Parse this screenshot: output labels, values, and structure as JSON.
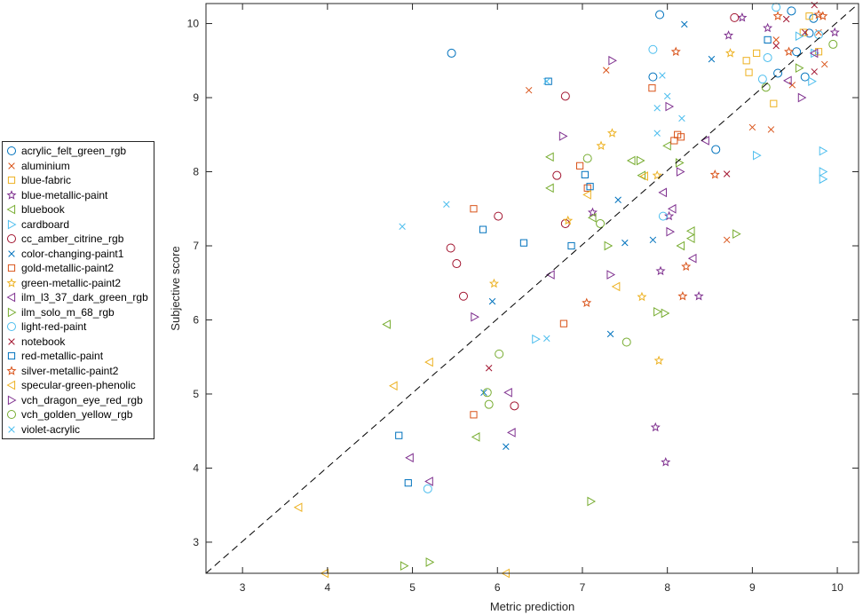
{
  "chart_data": {
    "type": "scatter",
    "title": "",
    "xlabel": "Metric prediction",
    "ylabel": "Subjective score",
    "xlim": [
      2.57,
      10.25
    ],
    "ylim": [
      2.58,
      10.27
    ],
    "xticks": [
      3,
      4,
      5,
      6,
      7,
      8,
      9,
      10
    ],
    "yticks": [
      3,
      4,
      5,
      6,
      7,
      8,
      9,
      10
    ],
    "grid": false,
    "reference_line": {
      "style": "dashed",
      "color": "#000000",
      "from": [
        2.57,
        2.58
      ],
      "to": [
        10.25,
        10.27
      ]
    },
    "legend_position": "outside-left",
    "series": [
      {
        "name": "acrylic_felt_green_rgb",
        "marker": "circle",
        "color": "#0072BD",
        "points": [
          [
            5.46,
            9.6
          ],
          [
            7.83,
            9.28
          ],
          [
            8.57,
            8.3
          ],
          [
            9.46,
            10.17
          ],
          [
            9.52,
            9.62
          ],
          [
            9.67,
            9.87
          ],
          [
            9.72,
            10.07
          ],
          [
            9.62,
            9.28
          ],
          [
            9.3,
            9.33
          ],
          [
            7.91,
            10.12
          ]
        ]
      },
      {
        "name": "aluminium",
        "marker": "x",
        "color": "#D95319",
        "points": [
          [
            6.37,
            9.1
          ],
          [
            7.28,
            9.37
          ],
          [
            9.28,
            9.78
          ],
          [
            9.22,
            8.57
          ],
          [
            9.47,
            9.17
          ],
          [
            8.7,
            7.08
          ],
          [
            9.0,
            8.6
          ],
          [
            9.78,
            9.88
          ],
          [
            9.85,
            9.45
          ]
        ]
      },
      {
        "name": "blue-fabric",
        "marker": "square",
        "color": "#EDB120",
        "points": [
          [
            8.96,
            9.34
          ],
          [
            9.67,
            10.1
          ],
          [
            9.6,
            9.88
          ],
          [
            9.25,
            8.92
          ],
          [
            9.78,
            9.62
          ],
          [
            9.05,
            9.6
          ],
          [
            8.93,
            9.5
          ]
        ]
      },
      {
        "name": "blue-metallic-paint",
        "marker": "star",
        "color": "#7E2F8E",
        "points": [
          [
            9.18,
            9.94
          ],
          [
            8.88,
            10.08
          ],
          [
            8.72,
            9.84
          ],
          [
            9.97,
            9.88
          ],
          [
            8.02,
            7.4
          ],
          [
            7.92,
            6.66
          ],
          [
            8.37,
            6.32
          ],
          [
            7.86,
            4.55
          ],
          [
            7.98,
            4.08
          ],
          [
            7.12,
            7.45
          ]
        ]
      },
      {
        "name": "bluebook",
        "marker": "triangle-left",
        "color": "#77AC30",
        "points": [
          [
            6.62,
            8.2
          ],
          [
            6.62,
            7.78
          ],
          [
            7.12,
            7.38
          ],
          [
            7.58,
            8.15
          ],
          [
            8.0,
            8.35
          ],
          [
            8.28,
            7.2
          ],
          [
            8.28,
            7.1
          ],
          [
            8.16,
            7.0
          ],
          [
            5.75,
            4.42
          ],
          [
            4.7,
            5.94
          ],
          [
            7.7,
            7.95
          ]
        ]
      },
      {
        "name": "cardboard",
        "marker": "triangle-right",
        "color": "#4DBEEE",
        "points": [
          [
            9.83,
            8.28
          ],
          [
            9.83,
            8.0
          ],
          [
            9.83,
            7.9
          ],
          [
            9.05,
            8.22
          ],
          [
            9.7,
            9.22
          ],
          [
            9.73,
            9.6
          ],
          [
            6.45,
            5.74
          ],
          [
            9.55,
            9.83
          ]
        ]
      },
      {
        "name": "cc_amber_citrine_rgb",
        "marker": "circle",
        "color": "#A2142F",
        "points": [
          [
            6.8,
            9.02
          ],
          [
            8.79,
            10.08
          ],
          [
            6.7,
            7.95
          ],
          [
            6.01,
            7.4
          ],
          [
            6.8,
            7.3
          ],
          [
            5.45,
            6.97
          ],
          [
            5.52,
            6.76
          ],
          [
            5.6,
            6.32
          ],
          [
            6.2,
            4.84
          ]
        ]
      },
      {
        "name": "color-changing-paint1",
        "marker": "x",
        "color": "#0072BD",
        "points": [
          [
            8.2,
            9.99
          ],
          [
            8.52,
            9.52
          ],
          [
            7.42,
            7.62
          ],
          [
            7.5,
            7.04
          ],
          [
            7.83,
            7.08
          ],
          [
            5.94,
            6.25
          ],
          [
            7.33,
            5.81
          ],
          [
            5.84,
            5.02
          ],
          [
            6.1,
            4.29
          ]
        ]
      },
      {
        "name": "gold-metallic-paint2",
        "marker": "square",
        "color": "#D95319",
        "points": [
          [
            7.82,
            9.13
          ],
          [
            8.08,
            8.42
          ],
          [
            8.12,
            8.5
          ],
          [
            8.16,
            8.47
          ],
          [
            6.97,
            8.08
          ],
          [
            7.06,
            7.78
          ],
          [
            5.72,
            7.5
          ],
          [
            6.78,
            5.95
          ],
          [
            5.72,
            4.72
          ]
        ]
      },
      {
        "name": "green-metallic-paint2",
        "marker": "star",
        "color": "#EDB120",
        "points": [
          [
            8.74,
            9.6
          ],
          [
            7.35,
            8.52
          ],
          [
            7.22,
            8.35
          ],
          [
            7.88,
            7.95
          ],
          [
            6.83,
            7.34
          ],
          [
            5.96,
            6.49
          ],
          [
            7.7,
            6.31
          ],
          [
            7.9,
            5.45
          ]
        ]
      },
      {
        "name": "ilm_l3_37_dark_green_rgb",
        "marker": "triangle-left",
        "color": "#7E2F8E",
        "points": [
          [
            8.45,
            8.42
          ],
          [
            7.95,
            7.72
          ],
          [
            8.06,
            7.5
          ],
          [
            8.3,
            6.83
          ],
          [
            6.63,
            6.61
          ],
          [
            9.42,
            9.23
          ],
          [
            6.13,
            5.02
          ],
          [
            6.17,
            4.48
          ],
          [
            4.97,
            4.14
          ],
          [
            5.2,
            3.82
          ],
          [
            9.73,
            9.6
          ]
        ]
      },
      {
        "name": "ilm_solo_m_68_rgb",
        "marker": "triangle-right",
        "color": "#77AC30",
        "points": [
          [
            7.3,
            7.0
          ],
          [
            7.68,
            8.15
          ],
          [
            8.14,
            8.12
          ],
          [
            8.81,
            7.16
          ],
          [
            9.55,
            9.4
          ],
          [
            7.88,
            6.11
          ],
          [
            7.97,
            6.09
          ],
          [
            7.1,
            3.55
          ],
          [
            4.9,
            2.68
          ],
          [
            5.2,
            2.73
          ]
        ]
      },
      {
        "name": "light-red-paint",
        "marker": "circle",
        "color": "#4DBEEE",
        "points": [
          [
            7.83,
            9.65
          ],
          [
            7.95,
            7.4
          ],
          [
            9.28,
            10.22
          ],
          [
            9.12,
            9.25
          ],
          [
            9.18,
            9.54
          ],
          [
            9.78,
            9.85
          ],
          [
            5.18,
            3.72
          ]
        ]
      },
      {
        "name": "notebook",
        "marker": "x",
        "color": "#A2142F",
        "points": [
          [
            9.73,
            10.25
          ],
          [
            9.4,
            10.06
          ],
          [
            9.28,
            9.7
          ],
          [
            9.62,
            9.88
          ],
          [
            9.73,
            9.35
          ],
          [
            8.7,
            7.97
          ],
          [
            5.9,
            5.35
          ]
        ]
      },
      {
        "name": "red-metallic-paint",
        "marker": "square",
        "color": "#0072BD",
        "points": [
          [
            6.6,
            9.22
          ],
          [
            9.18,
            9.78
          ],
          [
            7.09,
            7.8
          ],
          [
            7.03,
            7.96
          ],
          [
            6.87,
            7.0
          ],
          [
            6.31,
            7.04
          ],
          [
            5.83,
            7.22
          ],
          [
            4.84,
            4.44
          ],
          [
            4.95,
            3.8
          ]
        ]
      },
      {
        "name": "silver-metallic-paint2",
        "marker": "star",
        "color": "#D95319",
        "points": [
          [
            8.1,
            9.62
          ],
          [
            9.3,
            10.1
          ],
          [
            9.78,
            10.12
          ],
          [
            9.83,
            10.1
          ],
          [
            9.43,
            9.62
          ],
          [
            8.56,
            7.96
          ],
          [
            8.22,
            6.72
          ],
          [
            8.18,
            6.32
          ],
          [
            7.05,
            6.23
          ]
        ]
      },
      {
        "name": "specular-green-phenolic",
        "marker": "triangle-left",
        "color": "#EDB120",
        "points": [
          [
            7.73,
            7.94
          ],
          [
            7.06,
            7.69
          ],
          [
            7.4,
            6.45
          ],
          [
            5.2,
            5.43
          ],
          [
            4.78,
            5.11
          ],
          [
            3.66,
            3.47
          ],
          [
            3.97,
            2.58
          ],
          [
            6.1,
            2.58
          ]
        ]
      },
      {
        "name": "vch_dragon_eye_red_rgb",
        "marker": "triangle-right",
        "color": "#7E2F8E",
        "points": [
          [
            7.35,
            9.5
          ],
          [
            8.02,
            8.88
          ],
          [
            6.77,
            8.48
          ],
          [
            8.15,
            8.0
          ],
          [
            8.03,
            7.19
          ],
          [
            7.33,
            6.61
          ],
          [
            5.73,
            6.04
          ],
          [
            9.58,
            9.0
          ]
        ]
      },
      {
        "name": "vch_golden_yellow_rgb",
        "marker": "circle",
        "color": "#77AC30",
        "points": [
          [
            9.95,
            9.72
          ],
          [
            9.16,
            9.14
          ],
          [
            7.06,
            8.18
          ],
          [
            7.21,
            7.3
          ],
          [
            7.52,
            5.7
          ],
          [
            6.02,
            5.54
          ],
          [
            5.88,
            5.02
          ],
          [
            5.9,
            4.86
          ]
        ]
      },
      {
        "name": "violet-acrylic",
        "marker": "x",
        "color": "#4DBEEE",
        "points": [
          [
            7.94,
            9.3
          ],
          [
            8.0,
            9.02
          ],
          [
            7.88,
            8.86
          ],
          [
            8.17,
            8.72
          ],
          [
            7.88,
            8.52
          ],
          [
            6.58,
            9.22
          ],
          [
            5.4,
            7.56
          ],
          [
            4.88,
            7.26
          ],
          [
            6.58,
            5.75
          ]
        ]
      }
    ]
  }
}
